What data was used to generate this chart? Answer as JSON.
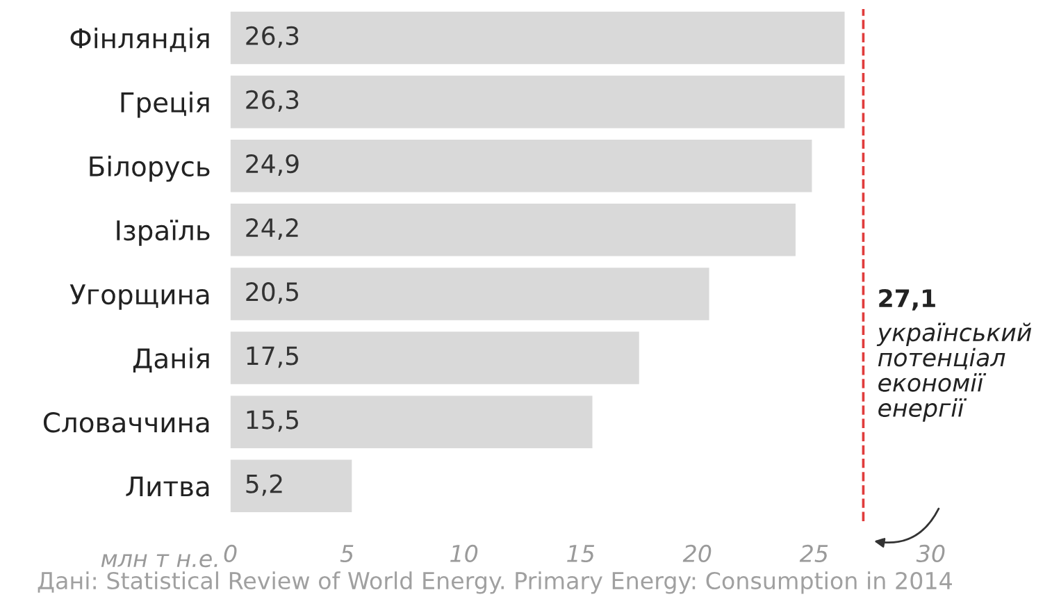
{
  "chart_data": {
    "type": "bar",
    "orientation": "horizontal",
    "categories": [
      "Фінляндія",
      "Греція",
      "Білорусь",
      "Ізраїль",
      "Угорщина",
      "Данія",
      "Словаччина",
      "Литва"
    ],
    "values": [
      26.3,
      26.3,
      24.9,
      24.2,
      20.5,
      17.5,
      15.5,
      5.2
    ],
    "value_labels": [
      "26,3",
      "26,3",
      "24,9",
      "24,2",
      "20,5",
      "17,5",
      "15,5",
      "5,2"
    ],
    "color": "#d9d9d9",
    "xlabel": "млн т н.е.",
    "xlim": [
      0,
      30
    ],
    "xticks": [
      0,
      5,
      10,
      15,
      20,
      25,
      30
    ],
    "ref_lines": [
      {
        "axis": "x",
        "value": 27.1,
        "label": "27,1\nукраїнський\nпотенціал\nекономії\nенергії",
        "color": "#e03c3c",
        "line_style": "dashed"
      }
    ],
    "annotations": [
      "Дані: Statistical Review of World Energy. Primary Energy: Consumption in 2014"
    ],
    "grid": false
  }
}
